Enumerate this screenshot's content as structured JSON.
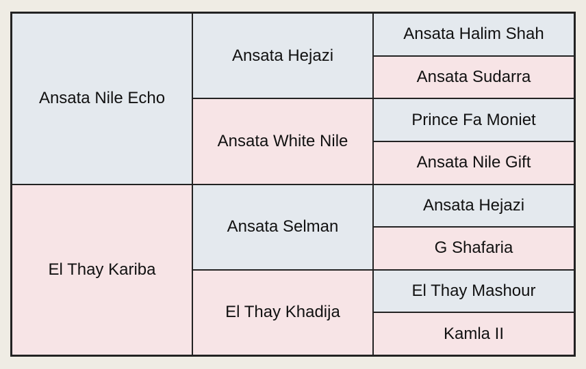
{
  "generations": [
    [
      "Ansata Nile Echo",
      "El Thay Kariba"
    ],
    [
      "Ansata Hejazi",
      "Ansata White Nile",
      "Ansata Selman",
      "El Thay Khadija"
    ],
    [
      "Ansata Halim Shah",
      "Ansata Sudarra",
      "Prince Fa Moniet",
      "Ansata Nile Gift",
      "Ansata Hejazi",
      "G Shafaria",
      "El Thay Mashour",
      "Kamla II"
    ]
  ]
}
